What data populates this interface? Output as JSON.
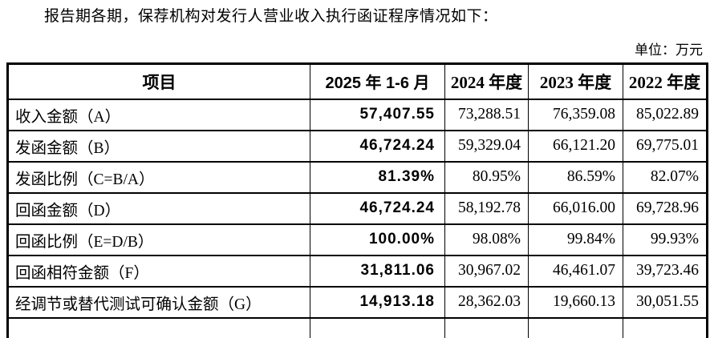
{
  "page": {
    "intro": "报告期各期，保荐机构对发行人营业收入执行函证程序情况如下：",
    "unit_label": "单位：万元"
  },
  "table": {
    "columns": [
      "项目",
      "2025 年 1-6 月",
      "2024 年度",
      "2023 年度",
      "2022 年度"
    ],
    "rows": [
      {
        "label": "收入金额（A）",
        "values": [
          "57,407.55",
          "73,288.51",
          "76,359.08",
          "85,022.89"
        ]
      },
      {
        "label": "发函金额（B）",
        "values": [
          "46,724.24",
          "59,329.04",
          "66,121.20",
          "69,775.01"
        ]
      },
      {
        "label": "发函比例（C=B/A）",
        "values": [
          "81.39%",
          "80.95%",
          "86.59%",
          "82.07%"
        ]
      },
      {
        "label": "回函金额（D）",
        "values": [
          "46,724.24",
          "58,192.78",
          "66,016.00",
          "69,728.96"
        ]
      },
      {
        "label": "回函比例（E=D/B）",
        "values": [
          "100.00%",
          "98.08%",
          "99.84%",
          "99.93%"
        ]
      },
      {
        "label": "回函相符金额（F）",
        "values": [
          "31,811.06",
          "30,967.02",
          "46,461.07",
          "39,723.46"
        ]
      },
      {
        "label": "经调节或替代测试可确认金额（G）",
        "values": [
          "14,913.18",
          "28,362.03",
          "19,660.13",
          "30,051.55"
        ]
      }
    ]
  }
}
